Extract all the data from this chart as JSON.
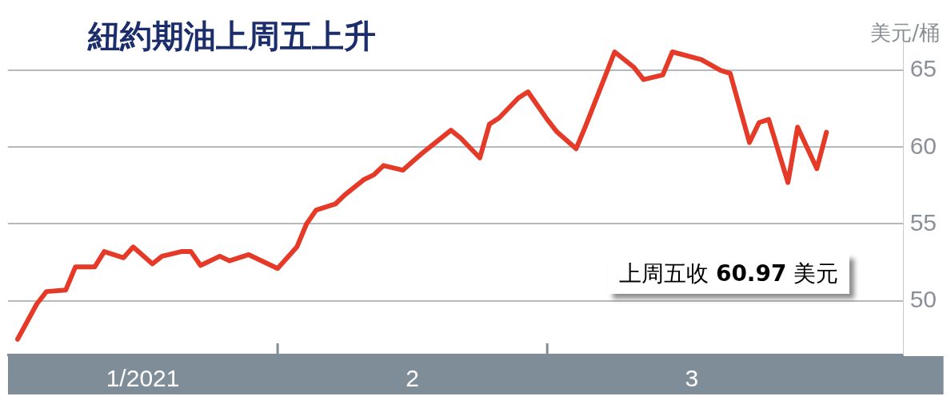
{
  "chart_data": {
    "type": "line",
    "title": "紐約期油上周五上升",
    "ylabel": "美元/桶",
    "annotations": [
      "上周五收 60.97 美元"
    ],
    "x": [
      "2021-01-05",
      "2021-01-07",
      "2021-01-08",
      "2021-01-10",
      "2021-01-11",
      "2021-01-13",
      "2021-01-14",
      "2021-01-16",
      "2021-01-17",
      "2021-01-19",
      "2021-01-20",
      "2021-01-22",
      "2021-01-23",
      "2021-01-24",
      "2021-01-26",
      "2021-01-27",
      "2021-01-29",
      "2021-01-31",
      "2021-02-01",
      "2021-02-03",
      "2021-02-04",
      "2021-02-05",
      "2021-02-07",
      "2021-02-08",
      "2021-02-10",
      "2021-02-11",
      "2021-02-12",
      "2021-02-14",
      "2021-02-16",
      "2021-02-17",
      "2021-02-19",
      "2021-02-20",
      "2021-02-22",
      "2021-02-23",
      "2021-02-24",
      "2021-02-26",
      "2021-02-27",
      "2021-03-01",
      "2021-03-02",
      "2021-03-04",
      "2021-03-05",
      "2021-03-08",
      "2021-03-10",
      "2021-03-11",
      "2021-03-13",
      "2021-03-14",
      "2021-03-17",
      "2021-03-19",
      "2021-03-20",
      "2021-03-22",
      "2021-03-23",
      "2021-03-24",
      "2021-03-26",
      "2021-03-27",
      "2021-03-29",
      "2021-03-30"
    ],
    "series": [
      {
        "color": "#e53a27",
        "values": [
          47.5,
          49.8,
          50.6,
          50.7,
          52.2,
          52.2,
          53.2,
          52.8,
          53.5,
          52.4,
          52.9,
          53.2,
          53.2,
          52.3,
          52.9,
          52.6,
          53.0,
          52.4,
          52.1,
          53.5,
          55.0,
          55.9,
          56.3,
          56.9,
          57.9,
          58.2,
          58.8,
          58.5,
          59.6,
          60.1,
          61.1,
          60.6,
          59.3,
          61.5,
          61.9,
          63.2,
          63.6,
          61.8,
          61.0,
          59.9,
          61.4,
          66.2,
          65.2,
          64.4,
          64.7,
          66.2,
          65.7,
          65.0,
          64.8,
          60.3,
          61.6,
          61.8,
          57.7,
          61.3,
          58.6,
          60.97
        ]
      }
    ],
    "xlim": [
      "2021-01-04",
      "2021-04-07"
    ],
    "xticks": [
      {
        "value": "2021-01-18",
        "label": "1/2021"
      },
      {
        "value": "2021-02-01",
        "label": null
      },
      {
        "value": "2021-02-15",
        "label": "2"
      },
      {
        "value": "2021-03-01",
        "label": null
      },
      {
        "value": "2021-03-16",
        "label": "3"
      }
    ],
    "ylim": [
      46.5,
      67.5
    ],
    "yticks": [
      50,
      55,
      60,
      65
    ],
    "grid": "y",
    "legend": false,
    "marker": "none",
    "line_style": "solid"
  }
}
